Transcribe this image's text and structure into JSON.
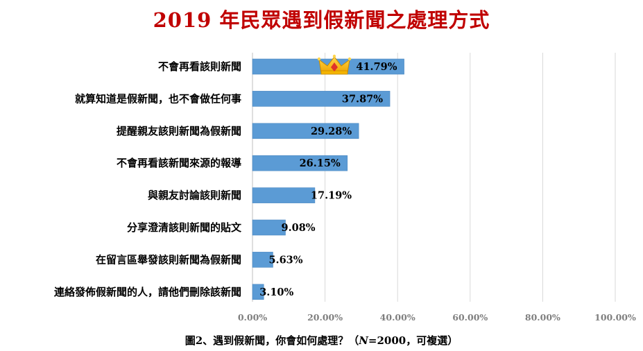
{
  "chart_data": {
    "type": "bar",
    "orientation": "horizontal",
    "title": "2019 年民眾遇到假新聞之處理方式",
    "categories": [
      "不會再看該則新聞",
      "就算知道是假新聞，也不會做任何事",
      "提醒親友該則新聞為假新聞",
      "不會再看該新聞來源的報導",
      "與親友討論該則新聞",
      "分享澄清該則新聞的貼文",
      "在留言區舉發該則新聞為假新聞",
      "連絡發佈假新聞的人，請他們刪除該新聞"
    ],
    "values": [
      41.79,
      37.87,
      29.28,
      26.15,
      17.19,
      9.08,
      5.63,
      3.1
    ],
    "data_labels": [
      "41.79%",
      "37.87%",
      "29.28%",
      "26.15%",
      "17.19%",
      "9.08%",
      "5.63%",
      "3.10%"
    ],
    "xlim": [
      0,
      100
    ],
    "x_ticks": [
      "0.00%",
      "20.00%",
      "40.00%",
      "60.00%",
      "80.00%",
      "100.00%"
    ],
    "grid": true,
    "bar_color": "#5b9bd5",
    "title_color": "#c00000",
    "top_marker_icon": "crown-icon"
  },
  "caption": {
    "prefix": "圖2、遇到假新聞，你會如何處理？（",
    "n_symbol": "N",
    "suffix": "=2000，可複選）"
  }
}
